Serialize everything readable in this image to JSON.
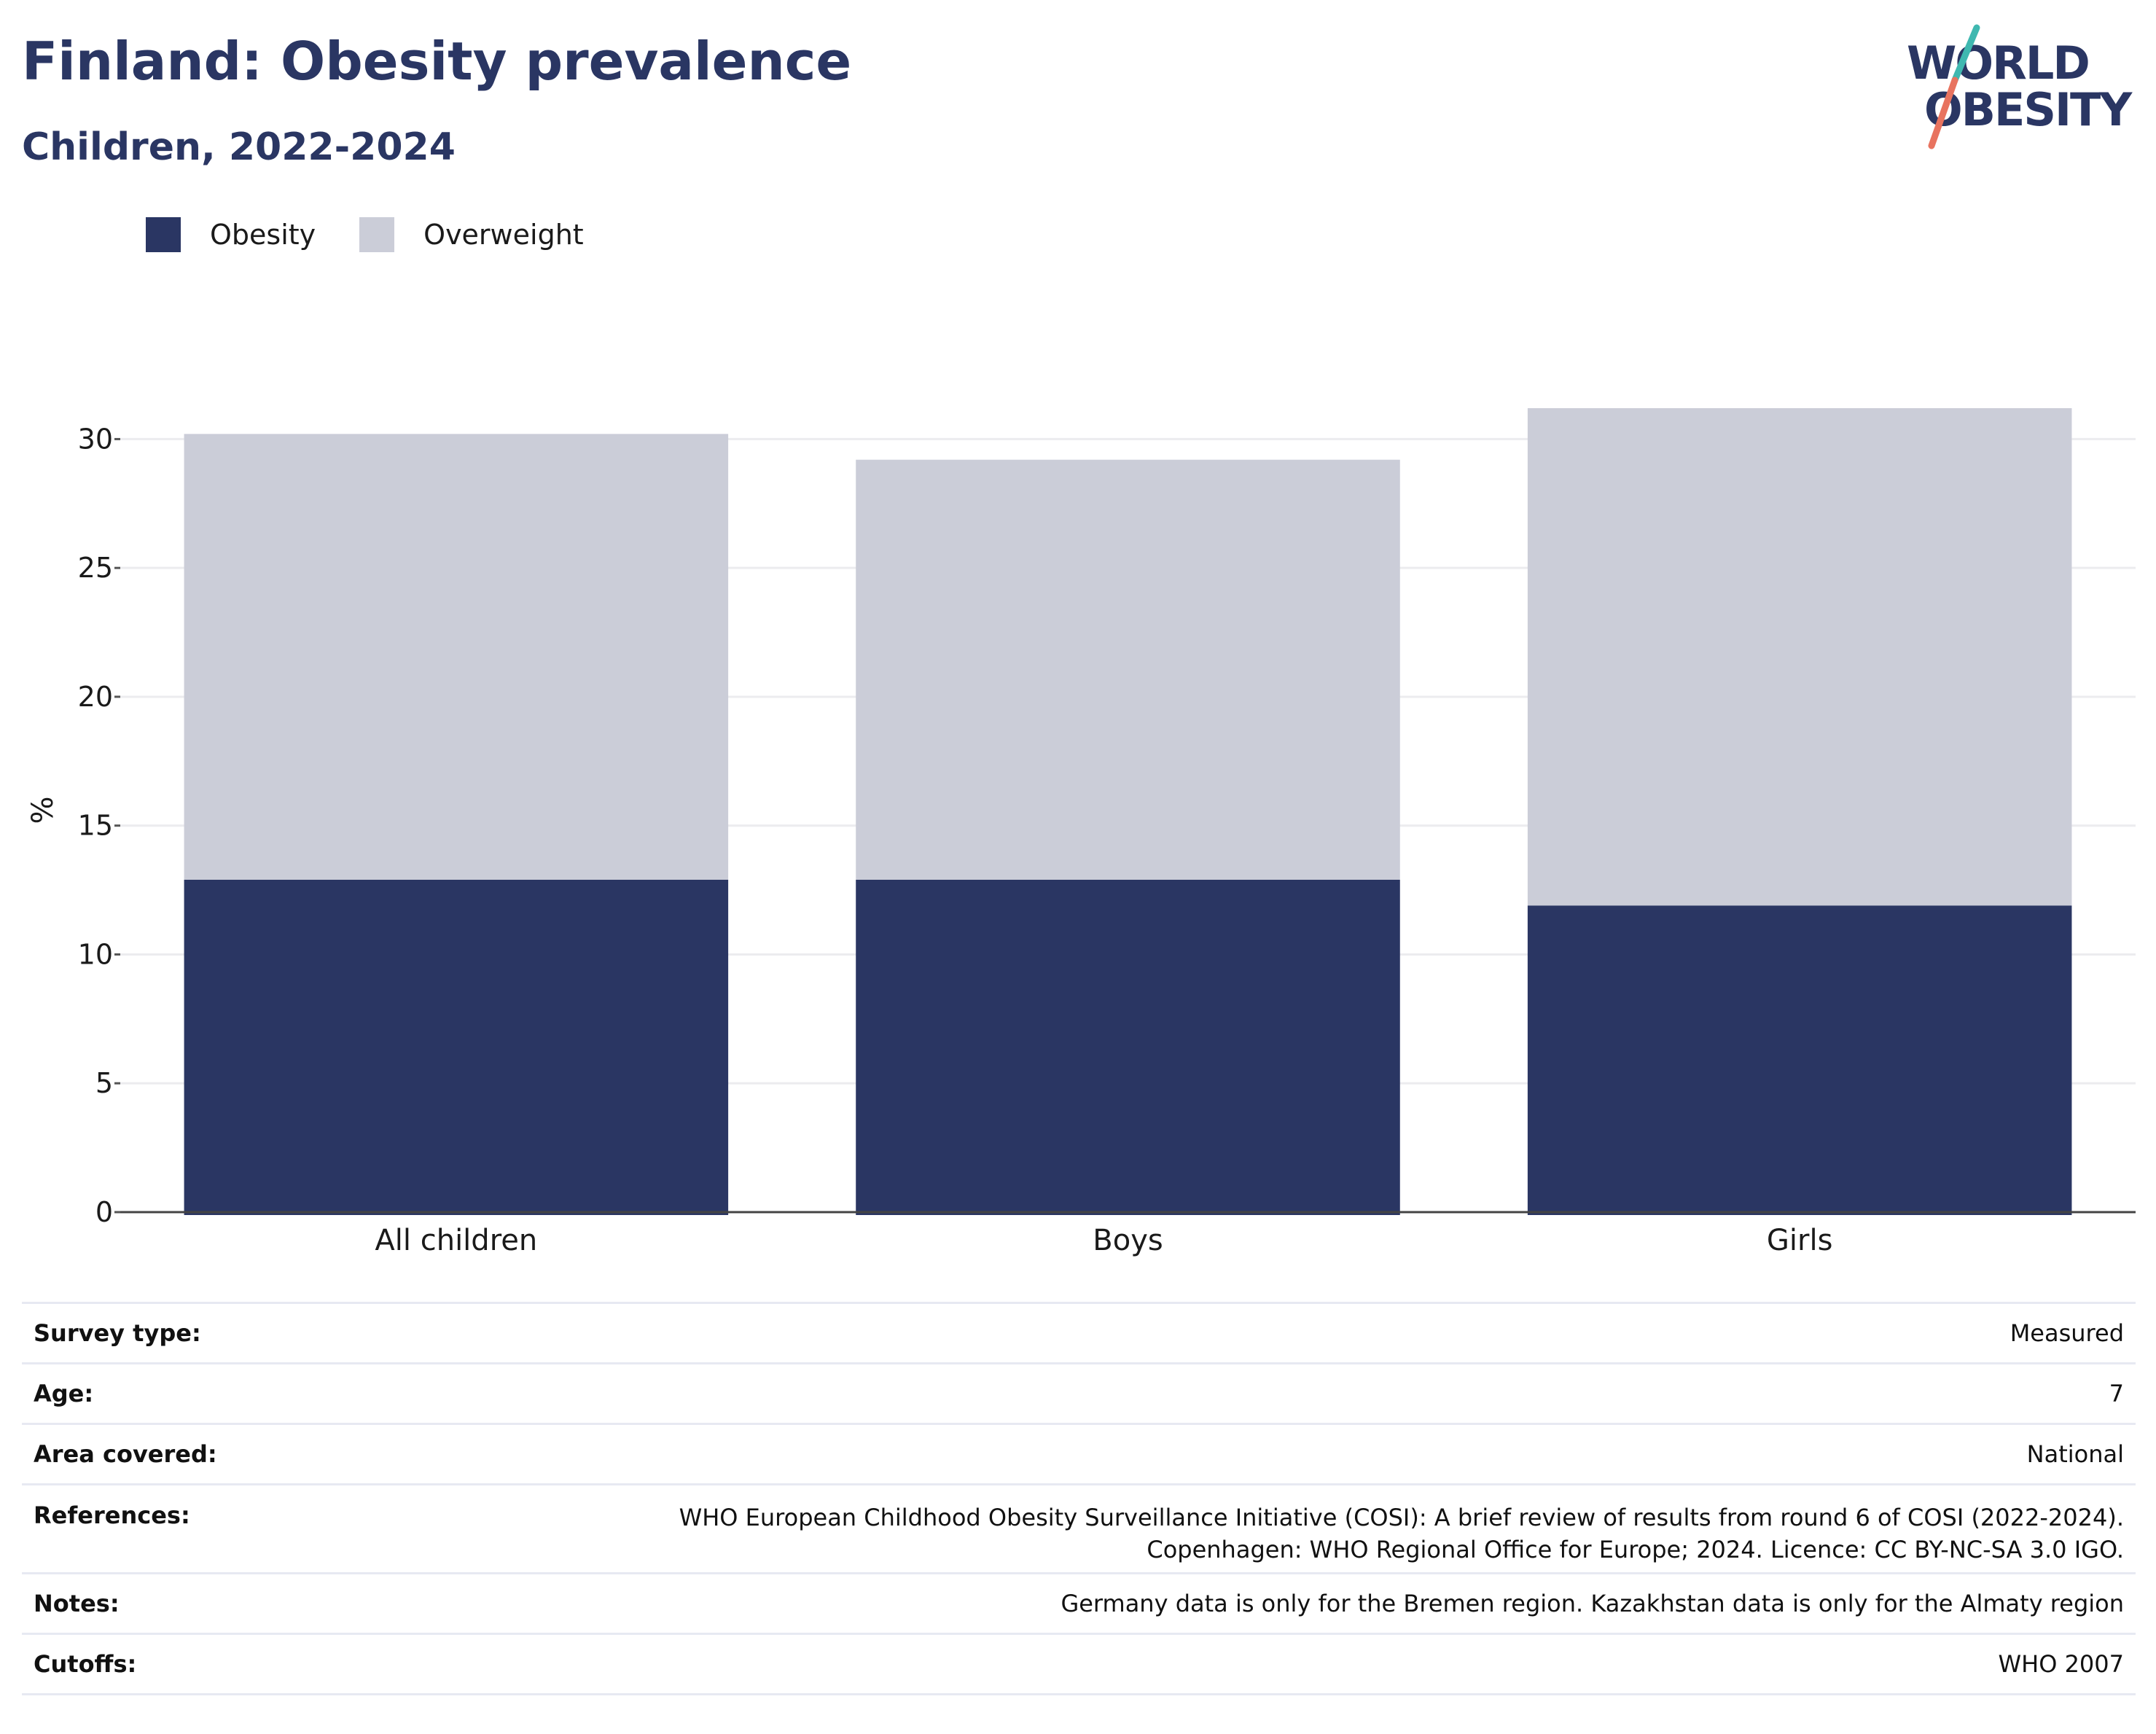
{
  "header": {
    "title": "Finland: Obesity prevalence",
    "subtitle": "Children, 2022-2024"
  },
  "logo": {
    "line1": "WORLD",
    "line2": "OBESITY",
    "accent_colors": [
      "#3fb8b0",
      "#e8735f"
    ]
  },
  "legend": [
    {
      "label": "Obesity",
      "color": "#2a3663"
    },
    {
      "label": "Overweight",
      "color": "#cbcdd8"
    }
  ],
  "chart_data": {
    "type": "bar",
    "stacked": true,
    "categories": [
      "All children",
      "Boys",
      "Girls"
    ],
    "series": [
      {
        "name": "Obesity",
        "color": "#2a3663",
        "values": [
          12.9,
          12.9,
          11.9
        ]
      },
      {
        "name": "Overweight",
        "color": "#cbcdd8",
        "values": [
          17.3,
          16.3,
          19.3
        ]
      }
    ],
    "totals": [
      30.2,
      29.2,
      31.2
    ],
    "ylabel": "%",
    "ylim": [
      0,
      31.2
    ],
    "yticks": [
      0,
      5,
      10,
      15,
      20,
      25,
      30
    ],
    "grid": true,
    "legend_position": "top-left"
  },
  "info": [
    {
      "key": "Survey type:",
      "value": "Measured"
    },
    {
      "key": "Age:",
      "value": "7"
    },
    {
      "key": "Area covered:",
      "value": "National"
    },
    {
      "key": "References:",
      "value_lines": [
        "WHO European Childhood Obesity Surveillance Initiative (COSI): A brief review of results from round 6 of COSI (2022-2024).",
        "Copenhagen: WHO Regional Office for Europe; 2024. Licence: CC BY-NC-SA 3.0 IGO."
      ]
    },
    {
      "key": "Notes:",
      "value": "Germany data is only for the Bremen region. Kazakhstan data is only for the Almaty region"
    },
    {
      "key": "Cutoffs:",
      "value": "WHO 2007"
    }
  ]
}
